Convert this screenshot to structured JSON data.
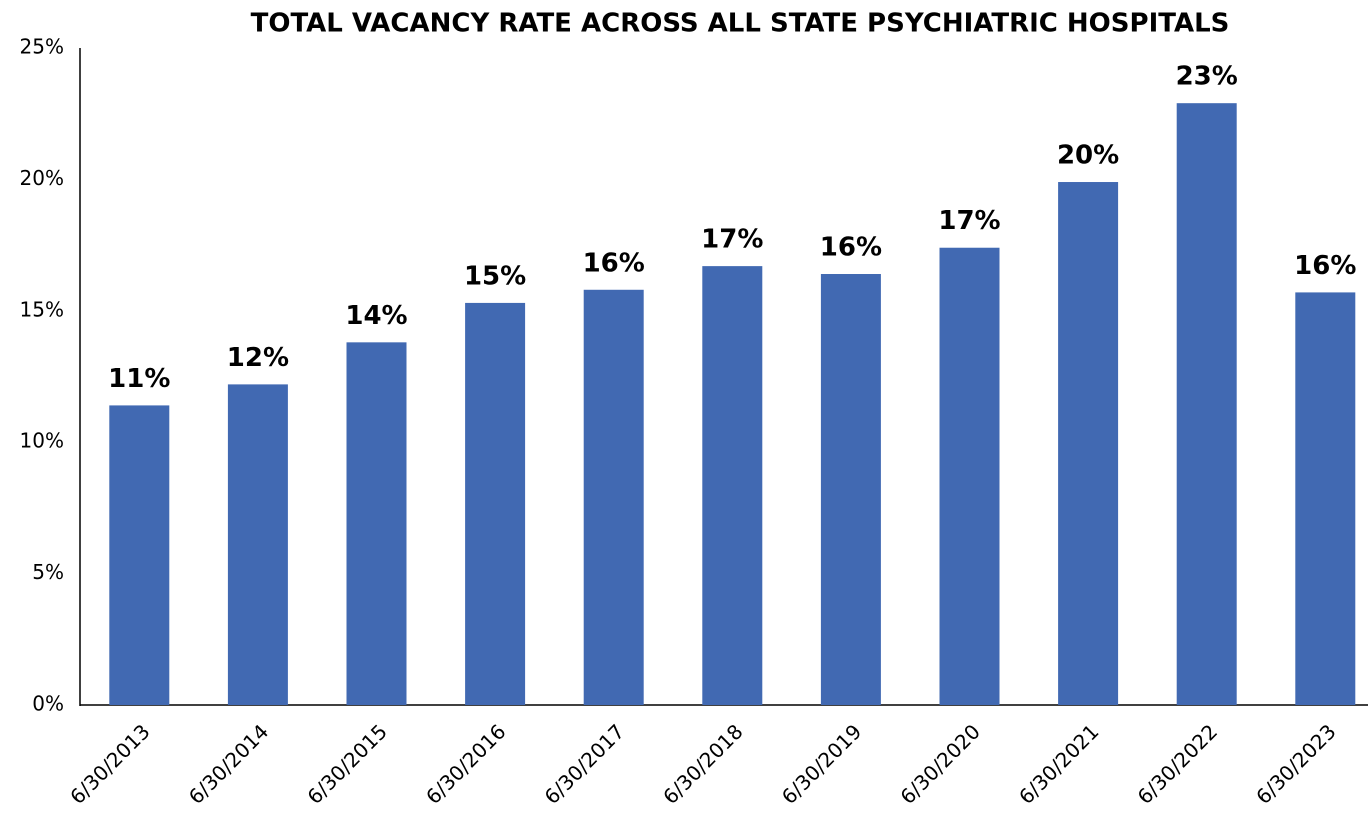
{
  "chart_data": {
    "type": "bar",
    "title": "TOTAL VACANCY RATE ACROSS ALL STATE PSYCHIATRIC HOSPITALS",
    "categories": [
      "6/30/2013",
      "6/30/2014",
      "6/30/2015",
      "6/30/2016",
      "6/30/2017",
      "6/30/2018",
      "6/30/2019",
      "6/30/2020",
      "6/30/2021",
      "6/30/2022",
      "6/30/2023"
    ],
    "values": [
      11.4,
      12.2,
      13.8,
      15.3,
      15.8,
      16.7,
      16.4,
      17.4,
      19.9,
      22.9,
      15.7
    ],
    "value_labels": [
      "11%",
      "12%",
      "14%",
      "15%",
      "16%",
      "17%",
      "16%",
      "17%",
      "20%",
      "23%",
      "16%"
    ],
    "color": "#4169b2",
    "ylim": [
      0,
      25
    ],
    "yticks": [
      {
        "value": 0,
        "label": "0%"
      },
      {
        "value": 5,
        "label": "5%"
      },
      {
        "value": 10,
        "label": "10%"
      },
      {
        "value": 15,
        "label": "15%"
      },
      {
        "value": 20,
        "label": "20%"
      },
      {
        "value": 25,
        "label": "25%"
      }
    ],
    "grid": false
  }
}
